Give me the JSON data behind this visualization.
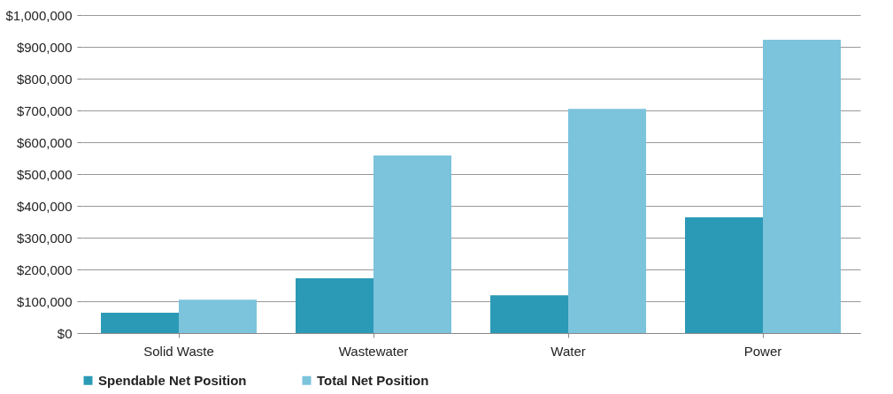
{
  "chart_data": {
    "type": "bar",
    "categories": [
      "Solid Waste",
      "Wastewater",
      "Water",
      "Power"
    ],
    "series": [
      {
        "name": "Spendable Net Position",
        "color": "#2b9ab6",
        "values": [
          64000,
          172000,
          119000,
          364000
        ]
      },
      {
        "name": "Total Net Position",
        "color": "#7cc3dc",
        "values": [
          105000,
          558000,
          705000,
          922000
        ]
      }
    ],
    "ylim": [
      0,
      1000000
    ],
    "yticks": [
      {
        "value": 0,
        "label": "$0"
      },
      {
        "value": 100000,
        "label": "$100,000"
      },
      {
        "value": 200000,
        "label": "$200,000"
      },
      {
        "value": 300000,
        "label": "$300,000"
      },
      {
        "value": 400000,
        "label": "$400,000"
      },
      {
        "value": 500000,
        "label": "$500,000"
      },
      {
        "value": 600000,
        "label": "$600,000"
      },
      {
        "value": 700000,
        "label": "$700,000"
      },
      {
        "value": 800000,
        "label": "$800,000"
      },
      {
        "value": 900000,
        "label": "$900,000"
      },
      {
        "value": 1000000,
        "label": "$1,000,000"
      }
    ],
    "grid": "y",
    "legend": "bottom"
  }
}
